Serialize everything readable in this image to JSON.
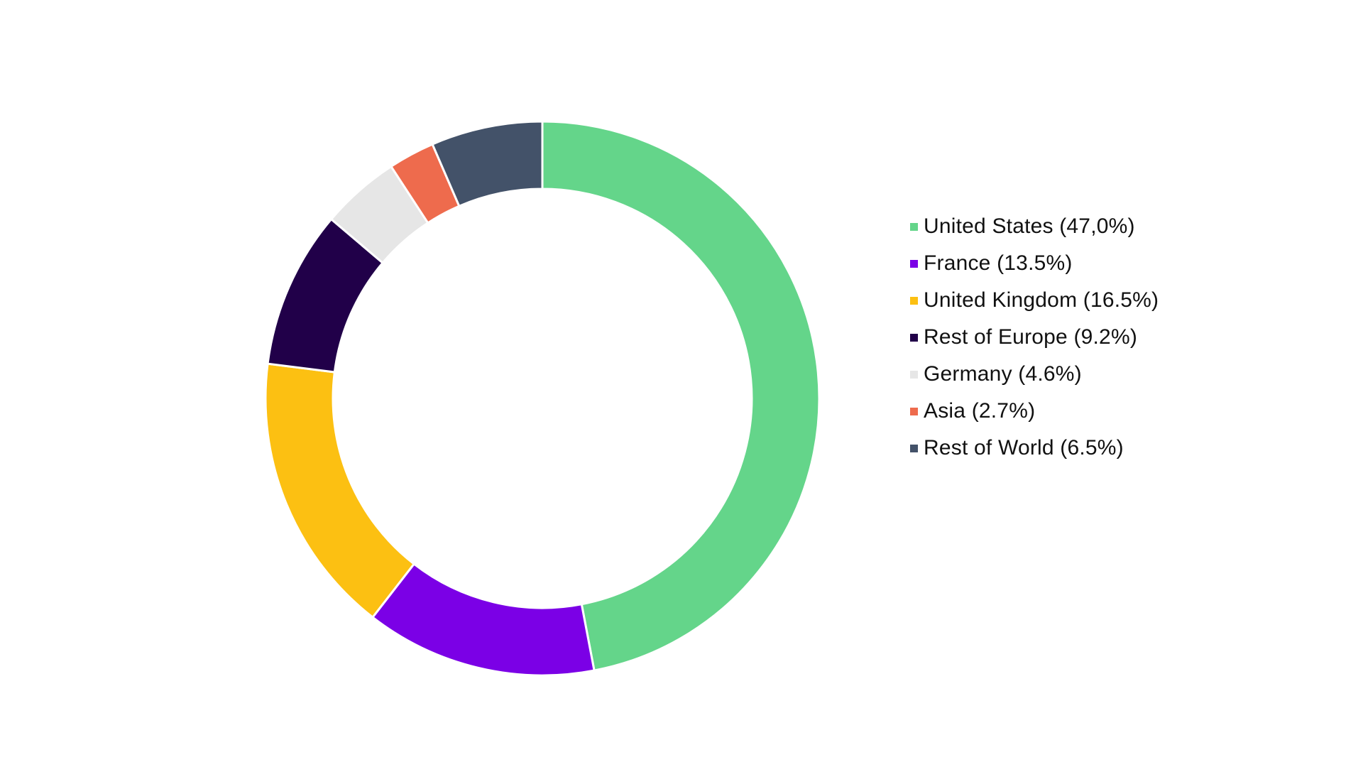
{
  "chart_data": {
    "type": "pie",
    "variant": "donut",
    "legend_position": "right",
    "slices": [
      {
        "label": "United States (47,0%)",
        "value": 47.0,
        "color": "#64d58a"
      },
      {
        "label": "France (13.5%)",
        "value": 13.5,
        "color": "#7b00e6"
      },
      {
        "label": "United Kingdom (16.5%)",
        "value": 16.5,
        "color": "#fcc012"
      },
      {
        "label": "Rest of Europe (9.2%)",
        "value": 9.2,
        "color": "#210049"
      },
      {
        "label": "Germany (4.6%)",
        "value": 4.6,
        "color": "#e6e6e6"
      },
      {
        "label": "Asia (2.7%)",
        "value": 2.7,
        "color": "#ee6b4d"
      },
      {
        "label": "Rest of World (6.5%)",
        "value": 6.5,
        "color": "#435269"
      }
    ]
  }
}
